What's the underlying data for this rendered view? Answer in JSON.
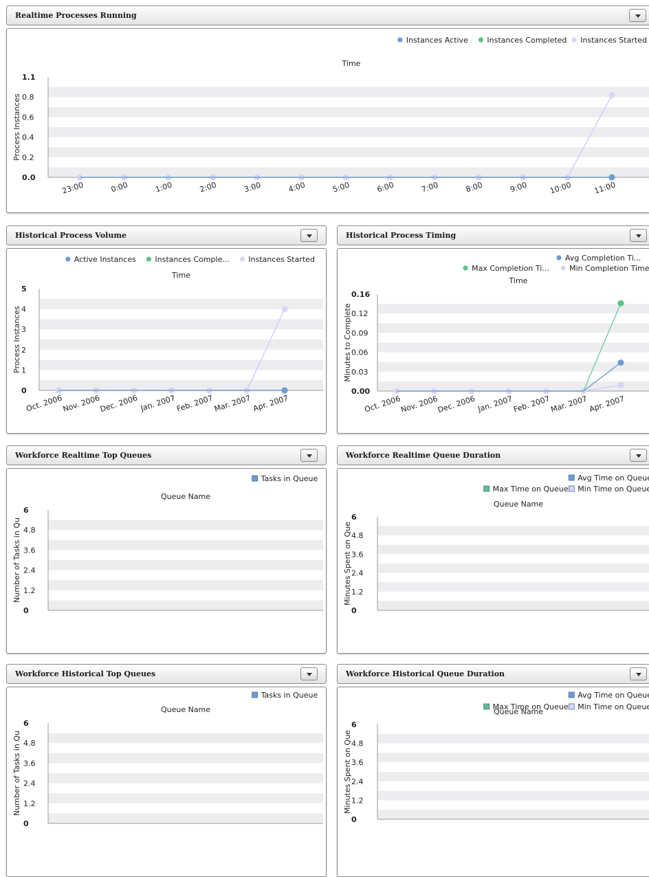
{
  "colors": {
    "active": "#6d9bd6",
    "completed": "#5cc183",
    "started": "#d6d6f6",
    "activeLine": "#7ba4d8",
    "completedLine": "#7fd0a0",
    "startedLine": "#cfcff7",
    "band": "#ededef"
  },
  "panels": [
    {
      "id": "realtime-processes",
      "title": "Realtime Processes Running",
      "chart_data": {
        "type": "line",
        "title": "Time",
        "ylabel": "Process Instances",
        "categories": [
          "23:00",
          "0:00",
          "1:00",
          "2:00",
          "3:00",
          "4:00",
          "5:00",
          "6:00",
          "7:00",
          "8:00",
          "9:00",
          "10:00",
          "11:00"
        ],
        "y_ticks": [
          "0.0",
          "0.2",
          "0.4",
          "0.6",
          "0.8",
          "1.1"
        ],
        "ylim": [
          0,
          1.1
        ],
        "series": [
          {
            "name": "Instances Active",
            "values": [
              0,
              0,
              0,
              0,
              0,
              0,
              0,
              0,
              0,
              0,
              0,
              0,
              0
            ],
            "color": "active"
          },
          {
            "name": "Instances Completed",
            "values": [
              0,
              0,
              0,
              0,
              0,
              0,
              0,
              0,
              0,
              0,
              0,
              0,
              0
            ],
            "color": "completed"
          },
          {
            "name": "Instances Started",
            "values": [
              0,
              0,
              0,
              0,
              0,
              0,
              0,
              0,
              0,
              0,
              0,
              0,
              0.9
            ],
            "color": "started"
          }
        ],
        "legend": "top-right"
      }
    },
    {
      "id": "historical-volume",
      "title": "Historical Process Volume",
      "chart_data": {
        "type": "line",
        "title": "Time",
        "ylabel": "Process Instances",
        "categories": [
          "Oct. 2006",
          "Nov. 2006",
          "Dec. 2006",
          "Jan. 2007",
          "Feb. 2007",
          "Mar. 2007",
          "Apr. 2007"
        ],
        "y_ticks": [
          "0",
          "1",
          "2",
          "3",
          "4",
          "5"
        ],
        "ylim": [
          0,
          5
        ],
        "series": [
          {
            "name": "Active Instances",
            "values": [
              0,
              0,
              0,
              0,
              0,
              0,
              0
            ],
            "color": "active"
          },
          {
            "name": "Instances Comple...",
            "values": [
              0,
              0,
              0,
              0,
              0,
              0,
              0
            ],
            "color": "completed"
          },
          {
            "name": "Instances Started",
            "values": [
              0,
              0,
              0,
              0,
              0,
              0,
              4
            ],
            "color": "started"
          }
        ],
        "legend": "top-right"
      }
    },
    {
      "id": "historical-timing",
      "title": "Historical Process Timing",
      "chart_data": {
        "type": "line",
        "title": "Time",
        "ylabel": "Minutes to Complete",
        "categories": [
          "Oct. 2006",
          "Nov. 2006",
          "Dec. 2006",
          "Jan. 2007",
          "Feb. 2007",
          "Mar. 2007",
          "Apr. 2007"
        ],
        "y_ticks": [
          "0.00",
          "0.03",
          "0.06",
          "0.09",
          "0.12",
          "0.16"
        ],
        "ylim": [
          0,
          0.16
        ],
        "series": [
          {
            "name": "Avg Completion Ti...",
            "values": [
              0,
              0,
              0,
              0,
              0,
              0,
              0.047
            ],
            "color": "active"
          },
          {
            "name": "Max Completion Ti...",
            "values": [
              0,
              0,
              0,
              0,
              0,
              0,
              0.145
            ],
            "color": "completed"
          },
          {
            "name": "Min Completion Time",
            "values": [
              0,
              0,
              0,
              0,
              0,
              0,
              0.01
            ],
            "color": "started"
          }
        ],
        "legend": "top-right"
      }
    },
    {
      "id": "realtime-top-queues",
      "title": "Workforce Realtime Top Queues",
      "chart_data": {
        "type": "bar",
        "title": "Queue Name",
        "ylabel": "Number of Tasks in Qu",
        "categories": [],
        "y_ticks": [
          "0",
          "1.2",
          "2.4",
          "3.6",
          "4.8",
          "6"
        ],
        "ylim": [
          0,
          6
        ],
        "series": [
          {
            "name": "Tasks in Queue",
            "values": [],
            "color": "active"
          }
        ],
        "legend": "top-right"
      }
    },
    {
      "id": "realtime-queue-duration",
      "title": "Workforce Realtime Queue Duration",
      "chart_data": {
        "type": "bar",
        "title": "Queue Name",
        "ylabel": "Minutes Spent on Quе",
        "categories": [],
        "y_ticks": [
          "0",
          "1.2",
          "2.4",
          "3.6",
          "4.8",
          "6"
        ],
        "ylim": [
          0,
          6
        ],
        "series": [
          {
            "name": "Avg Time on Queue",
            "values": [],
            "color": "active"
          },
          {
            "name": "Max Time on Queue",
            "values": [],
            "color": "completed"
          },
          {
            "name": "Min Time on Queue",
            "values": [],
            "color": "started"
          }
        ],
        "legend": "top-right"
      }
    },
    {
      "id": "historical-top-queues",
      "title": "Workforce Historical Top Queues",
      "chart_data": {
        "type": "bar",
        "title": "Queue Name",
        "ylabel": "Number of Tasks in Qu",
        "categories": [],
        "y_ticks": [
          "0",
          "1.2",
          "2.4",
          "3.6",
          "4.8",
          "6"
        ],
        "ylim": [
          0,
          6
        ],
        "series": [
          {
            "name": "Tasks in Queue",
            "values": [],
            "color": "active"
          }
        ],
        "legend": "top-right"
      }
    },
    {
      "id": "historical-queue-duration",
      "title": "Workforce Historical Queue Duration",
      "chart_data": {
        "type": "bar",
        "title": "Queue Name",
        "ylabel": "Minutes Spent on Quе",
        "categories": [],
        "y_ticks": [
          "0",
          "1.2",
          "2.4",
          "3.6",
          "4.8",
          "6"
        ],
        "ylim": [
          0,
          6
        ],
        "series": [
          {
            "name": "Avg Time on Queue",
            "values": [],
            "color": "active"
          },
          {
            "name": "Max Time on Queue",
            "values": [],
            "color": "completed"
          },
          {
            "name": "Min Time on Queue",
            "values": [],
            "color": "started"
          }
        ],
        "legend": "top-right"
      }
    }
  ]
}
